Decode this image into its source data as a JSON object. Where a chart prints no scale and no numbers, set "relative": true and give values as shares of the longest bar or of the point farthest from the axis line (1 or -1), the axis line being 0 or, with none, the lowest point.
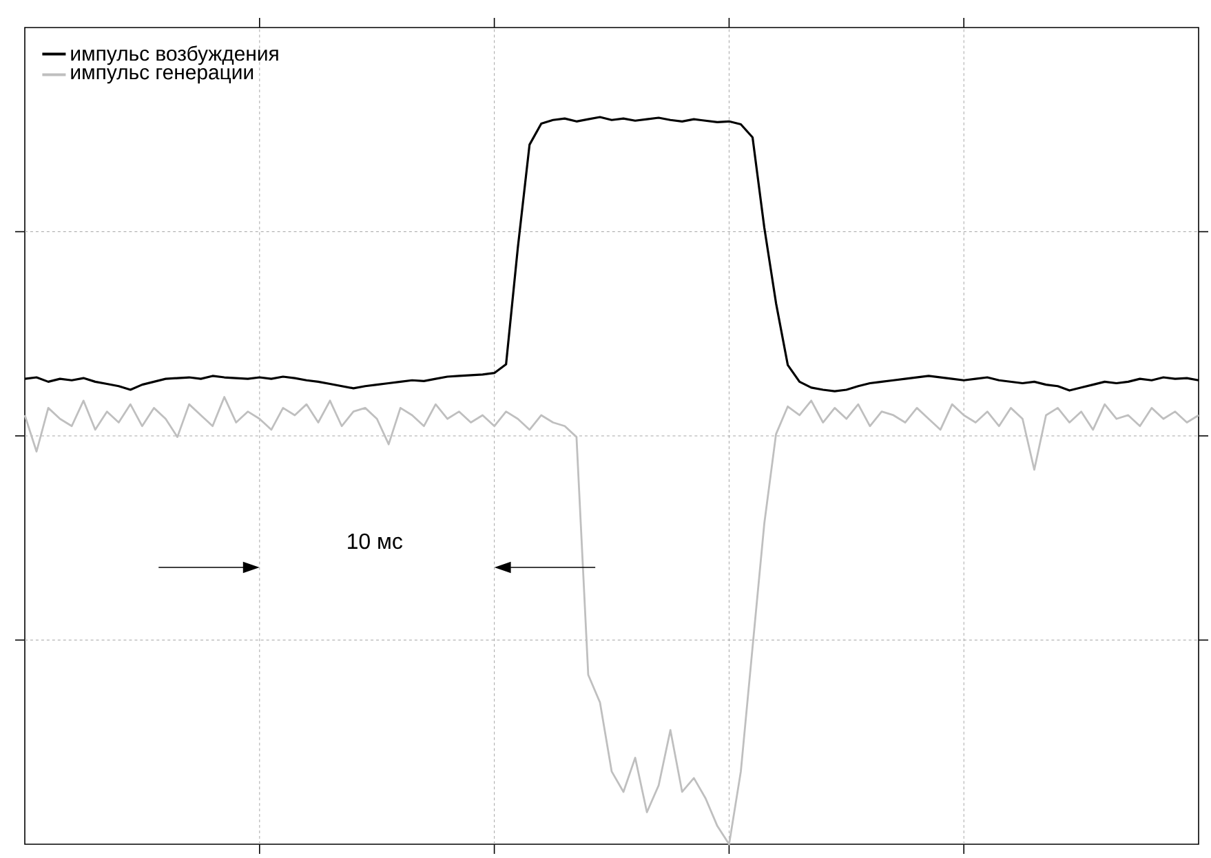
{
  "chart_data": {
    "type": "line",
    "relative": true,
    "grid": true,
    "legend": "top left",
    "line_style": "solid",
    "marker": "none",
    "categories": [
      null,
      null,
      null,
      null,
      null,
      null,
      null,
      null,
      null,
      null,
      null,
      null,
      null,
      null,
      null,
      null,
      null,
      null,
      null,
      null,
      null,
      null,
      null,
      null,
      null,
      null,
      null,
      null,
      null,
      null,
      null,
      null,
      null,
      null,
      null,
      null,
      null,
      null,
      null,
      null,
      null,
      null,
      null,
      null,
      null,
      null,
      null,
      null,
      null,
      null,
      null,
      null,
      null,
      null,
      null,
      null,
      null,
      null,
      null,
      null,
      null,
      null,
      null,
      null,
      null,
      null,
      null,
      null,
      null,
      null,
      null,
      null,
      null,
      null,
      null,
      null,
      null,
      null,
      null,
      null,
      null,
      null,
      null,
      null,
      null,
      null,
      null,
      null,
      null,
      null,
      null,
      null,
      null,
      null,
      null,
      null,
      null,
      null,
      null,
      null,
      null
    ],
    "series": [
      {
        "name": "импульс возбуждения",
        "color": "#000000",
        "values": [
          0.64,
          0.642,
          0.636,
          0.64,
          0.638,
          0.641,
          0.636,
          0.633,
          0.63,
          0.625,
          0.632,
          0.636,
          0.64,
          0.641,
          0.642,
          0.64,
          0.644,
          0.642,
          0.641,
          0.64,
          0.642,
          0.64,
          0.643,
          0.641,
          0.638,
          0.636,
          0.633,
          0.63,
          0.627,
          0.63,
          0.632,
          0.634,
          0.636,
          0.638,
          0.637,
          0.64,
          0.643,
          0.644,
          0.645,
          0.646,
          0.648,
          0.66,
          0.82,
          0.962,
          0.991,
          0.996,
          0.998,
          0.994,
          0.997,
          1.0,
          0.996,
          0.998,
          0.995,
          0.997,
          0.999,
          0.996,
          0.994,
          0.997,
          0.995,
          0.993,
          0.994,
          0.99,
          0.972,
          0.848,
          0.744,
          0.659,
          0.636,
          0.628,
          0.625,
          0.623,
          0.625,
          0.63,
          0.634,
          0.636,
          0.638,
          0.64,
          0.642,
          0.644,
          0.642,
          0.64,
          0.638,
          0.64,
          0.642,
          0.638,
          0.636,
          0.634,
          0.636,
          0.632,
          0.63,
          0.624,
          0.628,
          0.632,
          0.636,
          0.634,
          0.636,
          0.64,
          0.638,
          0.642,
          0.64,
          0.641,
          0.638
        ]
      },
      {
        "name": "импульс генерации",
        "color": "#bfbfbf",
        "values": [
          0.59,
          0.54,
          0.6,
          0.585,
          0.575,
          0.61,
          0.57,
          0.595,
          0.58,
          0.605,
          0.575,
          0.6,
          0.585,
          0.56,
          0.605,
          0.59,
          0.575,
          0.615,
          0.58,
          0.595,
          0.585,
          0.57,
          0.6,
          0.59,
          0.605,
          0.58,
          0.61,
          0.575,
          0.595,
          0.6,
          0.585,
          0.55,
          0.6,
          0.59,
          0.575,
          0.605,
          0.585,
          0.595,
          0.58,
          0.59,
          0.575,
          0.595,
          0.585,
          0.57,
          0.59,
          0.58,
          0.575,
          0.56,
          0.233,
          0.195,
          0.1,
          0.072,
          0.119,
          0.044,
          0.081,
          0.157,
          0.072,
          0.091,
          0.063,
          0.025,
          0.0,
          0.1,
          0.271,
          0.441,
          0.564,
          0.602,
          0.59,
          0.61,
          0.58,
          0.6,
          0.585,
          0.605,
          0.575,
          0.595,
          0.59,
          0.58,
          0.6,
          0.585,
          0.57,
          0.605,
          0.59,
          0.58,
          0.595,
          0.575,
          0.6,
          0.585,
          0.515,
          0.59,
          0.6,
          0.58,
          0.595,
          0.57,
          0.605,
          0.585,
          0.59,
          0.575,
          0.6,
          0.585,
          0.595,
          0.58,
          0.59
        ]
      }
    ],
    "annotations": [
      "10 мс"
    ]
  }
}
